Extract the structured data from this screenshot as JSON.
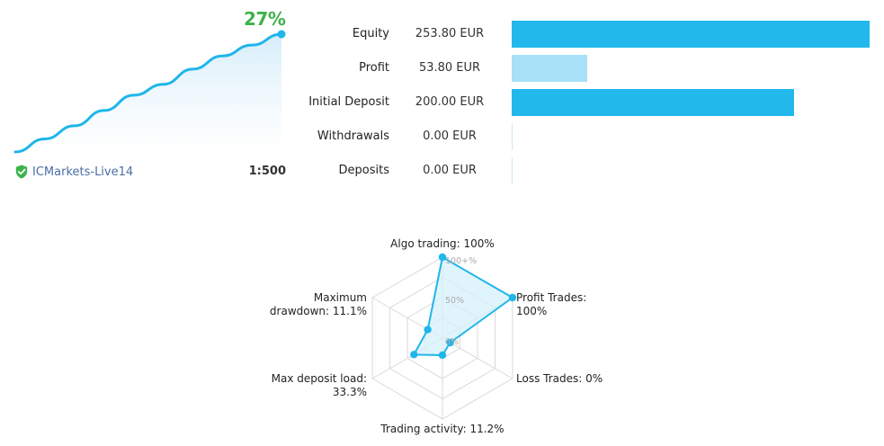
{
  "growth": {
    "percent": "27%",
    "series": [
      0,
      3,
      6,
      9.5,
      13,
      15.5,
      19,
      22,
      24.5,
      27
    ],
    "max": 27,
    "line_color": "#1fb6ea",
    "fill_color": "#e3f3fc"
  },
  "account": {
    "broker": "ICMarkets-Live14",
    "leverage": "1:500",
    "verified_color": "#3db34a"
  },
  "stats": [
    {
      "label": "Equity",
      "value": "253.80 EUR",
      "amount": 253.8,
      "color": "#22b8ec"
    },
    {
      "label": "Profit",
      "value": "53.80 EUR",
      "amount": 53.8,
      "color": "#a8e1f7"
    },
    {
      "label": "Initial Deposit",
      "value": "200.00 EUR",
      "amount": 200.0,
      "color": "#22b8ec"
    },
    {
      "label": "Withdrawals",
      "value": "0.00 EUR",
      "amount": 0,
      "color": "#22b8ec"
    },
    {
      "label": "Deposits",
      "value": "0.00 EUR",
      "amount": 0,
      "color": "#22b8ec"
    }
  ],
  "stats_max": 253.8,
  "radar": {
    "scale_labels": [
      "100+%",
      "50%",
      "0%"
    ],
    "axes": [
      {
        "label_lines": [
          "Algo trading: 100%"
        ],
        "value": 1.0
      },
      {
        "label_lines": [
          "Profit Trades:",
          "100%"
        ],
        "value": 1.0
      },
      {
        "label_lines": [
          "Loss Trades: 0%"
        ],
        "value": 0.0
      },
      {
        "label_lines": [
          "Trading activity: 11.2%"
        ],
        "value": 0.112
      },
      {
        "label_lines": [
          "Max deposit load:",
          "33.3%"
        ],
        "value": 0.333
      },
      {
        "label_lines": [
          "Maximum",
          "drawdown: 11.1%"
        ],
        "value": 0.111
      }
    ],
    "line_color": "#1fb6ea",
    "fill_color": "#d6f0fb",
    "grid_color": "#d9d9d9"
  }
}
